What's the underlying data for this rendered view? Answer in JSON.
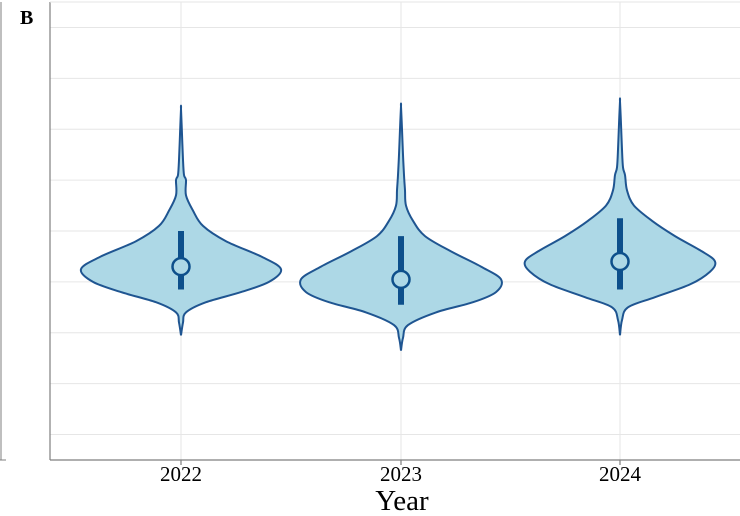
{
  "panel_label": "B",
  "colors": {
    "violin_fill": "#add8e6",
    "violin_stroke": "#1f5591",
    "summary": "#0d4f8b",
    "grid": "#e6e6e6",
    "axis": "#7f7f7f"
  },
  "chart_data": {
    "type": "violin",
    "categories": [
      "2022",
      "2023",
      "2024"
    ],
    "xlabel": "Year",
    "ylabel": "",
    "ytick_labels": [],
    "ylim": [
      0,
      9
    ],
    "grid": true,
    "series": [
      {
        "category": "2022",
        "median": 3.8,
        "q1": 3.35,
        "q3": 4.5,
        "min": 2.45,
        "max": 6.9,
        "density": [
          [
            2.45,
            0.0
          ],
          [
            2.7,
            0.02
          ],
          [
            2.9,
            0.05
          ],
          [
            3.1,
            0.25
          ],
          [
            3.3,
            0.6
          ],
          [
            3.5,
            0.88
          ],
          [
            3.75,
            1.0
          ],
          [
            4.0,
            0.8
          ],
          [
            4.3,
            0.45
          ],
          [
            4.6,
            0.22
          ],
          [
            4.9,
            0.12
          ],
          [
            5.2,
            0.05
          ],
          [
            5.5,
            0.05
          ],
          [
            5.6,
            0.03
          ],
          [
            5.9,
            0.02
          ],
          [
            6.4,
            0.01
          ],
          [
            6.9,
            0.0
          ]
        ]
      },
      {
        "category": "2023",
        "median": 3.55,
        "q1": 3.05,
        "q3": 4.4,
        "min": 2.15,
        "max": 6.95,
        "density": [
          [
            2.15,
            0.0
          ],
          [
            2.4,
            0.02
          ],
          [
            2.65,
            0.07
          ],
          [
            2.9,
            0.35
          ],
          [
            3.1,
            0.72
          ],
          [
            3.3,
            0.95
          ],
          [
            3.55,
            1.0
          ],
          [
            3.8,
            0.8
          ],
          [
            4.1,
            0.5
          ],
          [
            4.4,
            0.24
          ],
          [
            4.7,
            0.12
          ],
          [
            5.0,
            0.05
          ],
          [
            5.3,
            0.04
          ],
          [
            5.6,
            0.03
          ],
          [
            6.0,
            0.02
          ],
          [
            6.5,
            0.01
          ],
          [
            6.95,
            0.0
          ]
        ]
      },
      {
        "category": "2024",
        "median": 3.9,
        "q1": 3.35,
        "q3": 4.75,
        "min": 2.45,
        "max": 7.05,
        "density": [
          [
            2.45,
            0.0
          ],
          [
            2.75,
            0.02
          ],
          [
            3.0,
            0.08
          ],
          [
            3.2,
            0.35
          ],
          [
            3.45,
            0.7
          ],
          [
            3.7,
            0.9
          ],
          [
            3.9,
            0.95
          ],
          [
            4.1,
            0.82
          ],
          [
            4.4,
            0.55
          ],
          [
            4.7,
            0.32
          ],
          [
            5.0,
            0.14
          ],
          [
            5.3,
            0.07
          ],
          [
            5.6,
            0.05
          ],
          [
            5.75,
            0.03
          ],
          [
            6.1,
            0.02
          ],
          [
            6.6,
            0.01
          ],
          [
            7.05,
            0.0
          ]
        ]
      }
    ]
  }
}
